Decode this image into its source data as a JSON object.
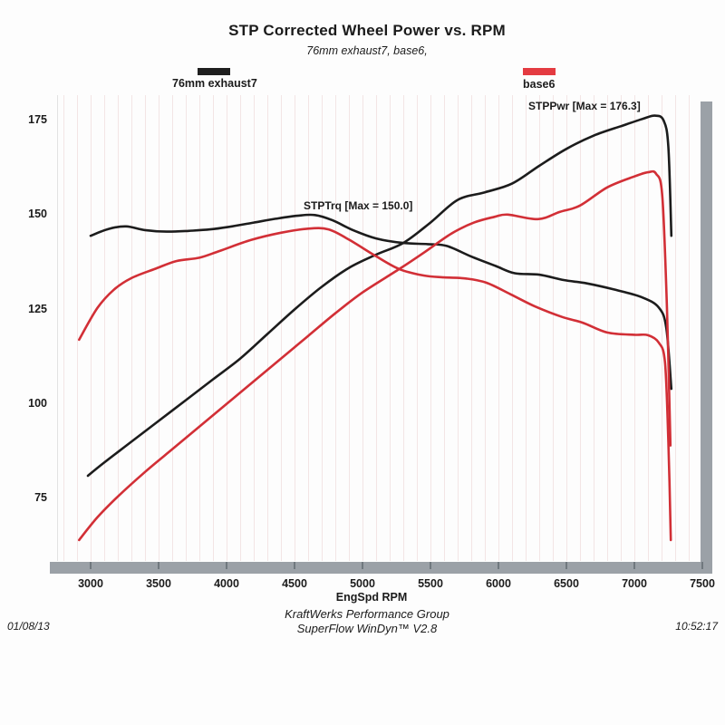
{
  "title": "STP Corrected Wheel Power vs. RPM",
  "subtitle": "76mm exhaust7, base6,",
  "legend": {
    "items": [
      {
        "label": "76mm exhaust7",
        "color": "#1f1f1f"
      },
      {
        "label": "base6",
        "color": "#e43b41"
      }
    ]
  },
  "annotations": {
    "power_max": "STPPwr [Max = 176.3]",
    "torque_max": "STPTrq [Max = 150.0]"
  },
  "footer": {
    "date": "01/08/13",
    "org": "KraftWerks Performance Group",
    "software": "SuperFlow WinDyn™ V2.8",
    "time": "10:52:17"
  },
  "colors": {
    "black_curve": "#1c1c1c",
    "red_curve": "#d22f36",
    "axis_bar": "#9ba1a7",
    "axis_tick": "#70787e",
    "gridline": "rgba(225,190,190,0.38)"
  },
  "chart_data": {
    "type": "line",
    "title": "STP Corrected Wheel Power vs. RPM",
    "subtitle": "76mm exhaust7, base6,",
    "xlabel": "EngSpd RPM",
    "ylabel": "",
    "x_ticks": [
      3000,
      3500,
      4000,
      4500,
      5000,
      5500,
      6000,
      6500,
      7000,
      7500
    ],
    "y_ticks": [
      175,
      150,
      125,
      100,
      75
    ],
    "xlim": [
      2750,
      7550
    ],
    "ylim": [
      56,
      182
    ],
    "grid": "faint vertical minor lines every 100 RPM",
    "legend_position": "top",
    "series": [
      {
        "name": "76mm exhaust7 - STPPwr",
        "color": "#1c1c1c",
        "max": 176.3,
        "points": [
          [
            2980,
            81
          ],
          [
            3100,
            84.5
          ],
          [
            3300,
            90
          ],
          [
            3500,
            95.5
          ],
          [
            3700,
            101
          ],
          [
            3900,
            106.5
          ],
          [
            4100,
            112
          ],
          [
            4300,
            118.5
          ],
          [
            4500,
            125
          ],
          [
            4700,
            131
          ],
          [
            4900,
            136
          ],
          [
            5100,
            139.5
          ],
          [
            5300,
            142.6
          ],
          [
            5500,
            148
          ],
          [
            5700,
            154
          ],
          [
            5900,
            156
          ],
          [
            6100,
            158.3
          ],
          [
            6300,
            163
          ],
          [
            6500,
            167.5
          ],
          [
            6700,
            171
          ],
          [
            6900,
            173.5
          ],
          [
            7050,
            175.3
          ],
          [
            7150,
            176.3
          ],
          [
            7215,
            175
          ],
          [
            7250,
            168
          ],
          [
            7272,
            144.5
          ]
        ]
      },
      {
        "name": "76mm exhaust7 - STPTrq",
        "color": "#1c1c1c",
        "max": 150.0,
        "points": [
          [
            3000,
            144.5
          ],
          [
            3130,
            146.3
          ],
          [
            3260,
            147
          ],
          [
            3400,
            146
          ],
          [
            3560,
            145.6
          ],
          [
            3720,
            145.8
          ],
          [
            3880,
            146.2
          ],
          [
            4040,
            147
          ],
          [
            4200,
            148
          ],
          [
            4360,
            149
          ],
          [
            4520,
            149.8
          ],
          [
            4650,
            150.0
          ],
          [
            4780,
            148.6
          ],
          [
            4930,
            146
          ],
          [
            5100,
            143.8
          ],
          [
            5300,
            142.6
          ],
          [
            5480,
            142.3
          ],
          [
            5620,
            141.8
          ],
          [
            5800,
            139
          ],
          [
            5980,
            136.5
          ],
          [
            6120,
            134.6
          ],
          [
            6300,
            134.2
          ],
          [
            6480,
            132.8
          ],
          [
            6650,
            131.9
          ],
          [
            6850,
            130.3
          ],
          [
            7050,
            128.3
          ],
          [
            7180,
            125.5
          ],
          [
            7235,
            120
          ],
          [
            7272,
            104
          ]
        ]
      },
      {
        "name": "base6 - STPPwr",
        "color": "#d22f36",
        "max": 161.3,
        "points": [
          [
            2915,
            64
          ],
          [
            3050,
            70
          ],
          [
            3200,
            75.5
          ],
          [
            3400,
            82
          ],
          [
            3600,
            88
          ],
          [
            3800,
            94
          ],
          [
            4000,
            100
          ],
          [
            4200,
            106
          ],
          [
            4400,
            112
          ],
          [
            4600,
            118
          ],
          [
            4800,
            124
          ],
          [
            5000,
            129.5
          ],
          [
            5270,
            135.7
          ],
          [
            5450,
            140
          ],
          [
            5650,
            145
          ],
          [
            5820,
            148
          ],
          [
            5970,
            149.5
          ],
          [
            6070,
            150.1
          ],
          [
            6290,
            148.9
          ],
          [
            6450,
            150.8
          ],
          [
            6600,
            152.5
          ],
          [
            6800,
            157.3
          ],
          [
            7000,
            160.2
          ],
          [
            7100,
            161.3
          ],
          [
            7160,
            160.9
          ],
          [
            7205,
            155
          ],
          [
            7240,
            125
          ],
          [
            7265,
            89
          ]
        ]
      },
      {
        "name": "base6 - STPTrq",
        "color": "#d22f36",
        "max": 146.5,
        "points": [
          [
            2915,
            117
          ],
          [
            3050,
            125.4
          ],
          [
            3170,
            130.2
          ],
          [
            3300,
            133.3
          ],
          [
            3470,
            135.7
          ],
          [
            3630,
            137.8
          ],
          [
            3800,
            138.7
          ],
          [
            3950,
            140.5
          ],
          [
            4180,
            143.4
          ],
          [
            4400,
            145.3
          ],
          [
            4600,
            146.4
          ],
          [
            4750,
            146.2
          ],
          [
            4900,
            143.5
          ],
          [
            5090,
            139.3
          ],
          [
            5270,
            135.7
          ],
          [
            5450,
            134
          ],
          [
            5600,
            133.5
          ],
          [
            5760,
            133.2
          ],
          [
            5910,
            132.1
          ],
          [
            6090,
            129
          ],
          [
            6270,
            125.8
          ],
          [
            6470,
            123
          ],
          [
            6620,
            121.5
          ],
          [
            6800,
            118.9
          ],
          [
            7000,
            118.3
          ],
          [
            7100,
            118.2
          ],
          [
            7180,
            116.2
          ],
          [
            7225,
            111
          ],
          [
            7250,
            90
          ],
          [
            7268,
            64
          ]
        ]
      }
    ]
  }
}
